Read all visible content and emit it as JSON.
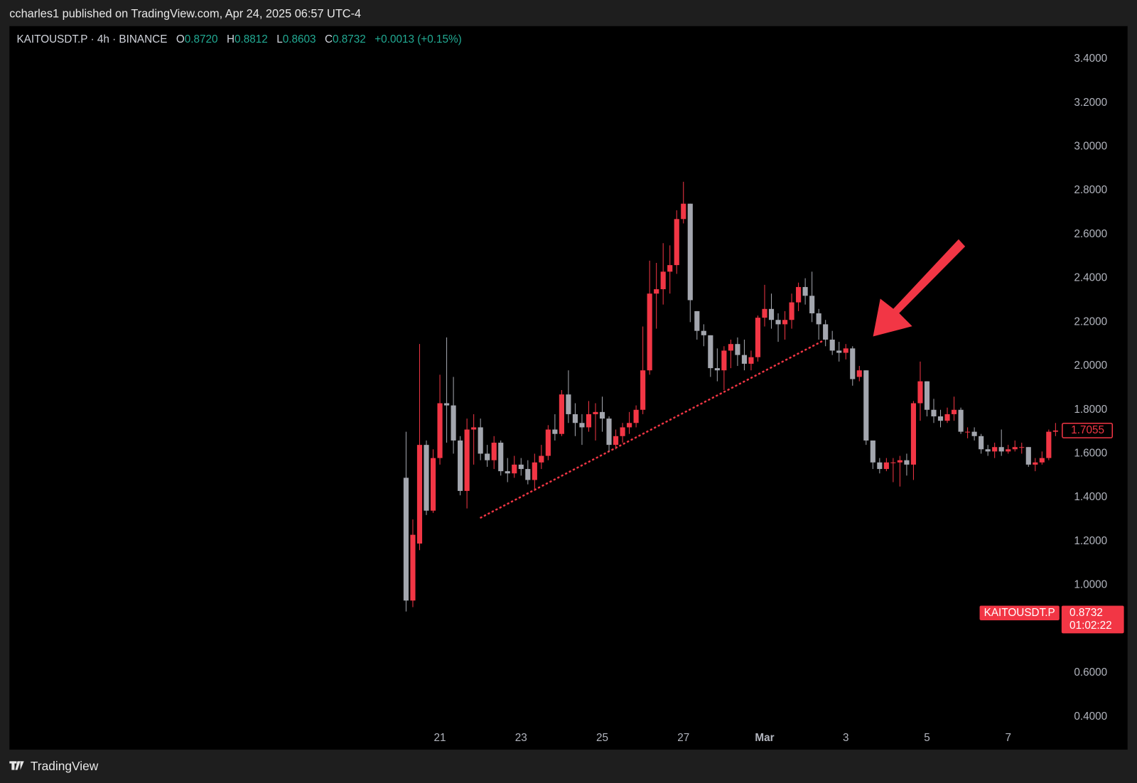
{
  "page": {
    "publisher_line": "ccharles1 published on TradingView.com, Apr 24, 2025 06:57 UTC-4",
    "brand": "TradingView"
  },
  "chart_data": {
    "type": "candlestick",
    "header": {
      "symbol": "KAITOUSDT.P · 4h · BINANCE",
      "o_key": "O",
      "o": "0.8720",
      "h_key": "H",
      "h": "0.8812",
      "l_key": "L",
      "l": "0.8603",
      "c_key": "C",
      "c": "0.8732",
      "change": "+0.0013 (+0.15%)"
    },
    "up_color": "#f23645",
    "down_color": "#a3a6ae",
    "categories": [
      null,
      null,
      null,
      null,
      null,
      "21",
      null,
      null,
      null,
      null,
      null,
      null,
      null,
      null,
      null,
      null,
      null,
      "23",
      null,
      null,
      null,
      null,
      null,
      null,
      null,
      null,
      null,
      null,
      null,
      "25",
      null,
      null,
      null,
      null,
      null,
      null,
      null,
      null,
      null,
      null,
      null,
      "27",
      null,
      null,
      null,
      null,
      null,
      null,
      null,
      null,
      null,
      null,
      null,
      "Mar",
      null,
      null,
      null,
      null,
      null,
      null,
      null,
      null,
      null,
      null,
      null,
      "3",
      null,
      null,
      null,
      null,
      null,
      null,
      null,
      null,
      null,
      null,
      null,
      "5",
      null,
      null,
      null,
      null,
      null,
      null,
      null,
      null,
      null,
      null,
      null,
      "7",
      null,
      null,
      null,
      null,
      null,
      null,
      null
    ],
    "open": [
      1.49,
      0.93,
      1.19,
      1.64,
      1.34,
      1.58,
      1.83,
      1.82,
      1.66,
      1.43,
      1.71,
      1.72,
      1.6,
      1.57,
      1.65,
      1.52,
      1.51,
      1.55,
      1.53,
      1.48,
      1.56,
      1.59,
      1.71,
      1.69,
      1.87,
      1.78,
      1.74,
      1.72,
      1.78,
      1.79,
      1.76,
      1.64,
      1.68,
      1.72,
      1.74,
      1.8,
      1.98,
      2.33,
      2.35,
      2.43,
      2.46,
      2.67,
      2.74,
      2.25,
      2.16,
      2.14,
      1.99,
      1.98,
      2.07,
      2.1,
      2.05,
      2.01,
      2.04,
      2.22,
      2.26,
      2.21,
      2.19,
      2.21,
      2.29,
      2.36,
      2.32,
      2.24,
      2.19,
      2.12,
      2.07,
      2.06,
      2.08,
      1.95,
      1.98,
      1.66,
      1.56,
      1.53,
      1.56,
      1.56,
      1.57,
      1.55,
      1.83,
      1.93,
      1.8,
      1.77,
      1.75,
      1.78,
      1.8,
      1.7,
      1.7,
      1.68,
      1.62,
      1.61,
      1.63,
      1.61,
      1.62,
      1.63,
      1.63,
      1.55,
      1.56,
      1.58,
      1.7
    ],
    "high": [
      1.7,
      1.3,
      2.1,
      1.66,
      1.62,
      1.96,
      2.13,
      1.95,
      1.68,
      1.76,
      1.78,
      1.76,
      1.64,
      1.68,
      1.66,
      1.58,
      1.59,
      1.58,
      1.57,
      1.6,
      1.64,
      1.73,
      1.78,
      1.89,
      1.98,
      1.83,
      1.78,
      1.84,
      1.83,
      1.86,
      1.77,
      1.71,
      1.74,
      1.79,
      1.82,
      2.18,
      2.48,
      2.47,
      2.56,
      2.55,
      2.71,
      2.84,
      2.74,
      2.25,
      2.19,
      2.14,
      2.08,
      2.09,
      2.12,
      2.13,
      2.12,
      2.07,
      2.23,
      2.37,
      2.33,
      2.24,
      2.25,
      2.33,
      2.38,
      2.4,
      2.43,
      2.26,
      2.21,
      2.16,
      2.11,
      2.1,
      2.09,
      2.0,
      1.98,
      1.66,
      1.58,
      1.58,
      1.58,
      1.59,
      1.6,
      1.84,
      2.02,
      1.93,
      1.85,
      1.8,
      1.81,
      1.86,
      1.81,
      1.72,
      1.72,
      1.69,
      1.64,
      1.65,
      1.71,
      1.64,
      1.66,
      1.65,
      1.63,
      1.58,
      1.61,
      1.71,
      1.74
    ],
    "low": [
      0.88,
      0.9,
      1.16,
      1.32,
      1.33,
      1.55,
      1.65,
      1.6,
      1.41,
      1.35,
      1.55,
      1.57,
      1.54,
      1.53,
      1.5,
      1.47,
      1.49,
      1.5,
      1.46,
      1.43,
      1.53,
      1.57,
      1.66,
      1.68,
      1.74,
      1.68,
      1.64,
      1.7,
      1.66,
      1.7,
      1.61,
      1.62,
      1.65,
      1.69,
      1.72,
      1.78,
      1.96,
      2.17,
      2.28,
      2.33,
      2.42,
      2.65,
      2.2,
      2.12,
      2.09,
      1.95,
      1.93,
      1.89,
      1.99,
      2.0,
      1.98,
      1.98,
      2.02,
      2.18,
      2.17,
      2.11,
      2.12,
      2.17,
      2.25,
      2.28,
      2.2,
      2.12,
      2.09,
      2.05,
      2.02,
      2.03,
      1.91,
      1.93,
      1.64,
      1.53,
      1.51,
      1.52,
      1.47,
      1.45,
      1.5,
      1.48,
      1.75,
      1.77,
      1.74,
      1.72,
      1.74,
      1.75,
      1.69,
      1.67,
      1.66,
      1.6,
      1.59,
      1.58,
      1.59,
      1.6,
      1.61,
      1.6,
      1.54,
      1.52,
      1.55,
      1.57,
      1.68
    ],
    "close": [
      0.93,
      1.23,
      1.64,
      1.34,
      1.58,
      1.83,
      1.82,
      1.66,
      1.43,
      1.71,
      1.72,
      1.6,
      1.57,
      1.65,
      1.52,
      1.51,
      1.55,
      1.53,
      1.48,
      1.56,
      1.59,
      1.71,
      1.69,
      1.87,
      1.78,
      1.74,
      1.72,
      1.78,
      1.79,
      1.76,
      1.64,
      1.68,
      1.72,
      1.74,
      1.8,
      1.98,
      2.33,
      2.35,
      2.43,
      2.46,
      2.67,
      2.74,
      2.3,
      2.16,
      2.14,
      1.99,
      1.98,
      2.07,
      2.1,
      2.05,
      2.01,
      2.04,
      2.22,
      2.26,
      2.21,
      2.19,
      2.21,
      2.29,
      2.36,
      2.32,
      2.24,
      2.19,
      2.12,
      2.07,
      2.06,
      2.08,
      1.94,
      1.98,
      1.66,
      1.56,
      1.53,
      1.56,
      1.56,
      1.57,
      1.55,
      1.83,
      1.93,
      1.8,
      1.77,
      1.75,
      1.78,
      1.8,
      1.7,
      1.7,
      1.68,
      1.62,
      1.61,
      1.63,
      1.61,
      1.62,
      1.63,
      1.63,
      1.55,
      1.56,
      1.58,
      1.7,
      1.7055
    ],
    "current_price": {
      "name": "KAITOUSDT.P",
      "value": 0.8732,
      "countdown": "01:02:22",
      "color": "#f23645"
    },
    "ylim": [
      0.25,
      3.55
    ],
    "yticks": [
      {
        "value": 0.4,
        "label": "0.4000"
      },
      {
        "value": 0.6,
        "label": "0.6000"
      },
      {
        "value": 1.0,
        "label": "1.0000"
      },
      {
        "value": 1.2,
        "label": "1.2000"
      },
      {
        "value": 1.4,
        "label": "1.4000"
      },
      {
        "value": 1.6,
        "label": "1.6000"
      },
      {
        "value": 1.8,
        "label": "1.8000"
      },
      {
        "value": 2.0,
        "label": "2.0000"
      },
      {
        "value": 2.2,
        "label": "2.2000"
      },
      {
        "value": 2.4,
        "label": "2.4000"
      },
      {
        "value": 2.6,
        "label": "2.6000"
      },
      {
        "value": 2.8,
        "label": "2.8000"
      },
      {
        "value": 3.0,
        "label": "3.0000"
      },
      {
        "value": 3.2,
        "label": "3.2000"
      },
      {
        "value": 3.4,
        "label": "3.4000"
      }
    ],
    "grid": false
  }
}
